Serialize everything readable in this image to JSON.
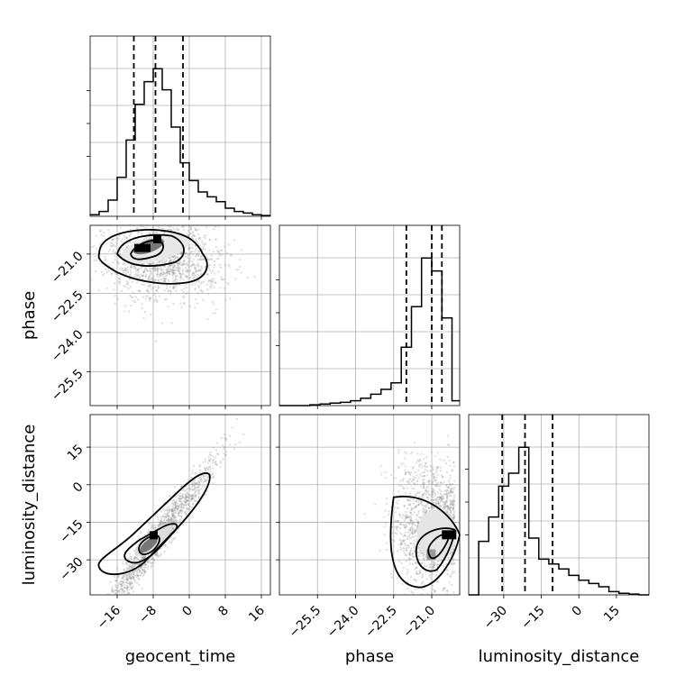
{
  "chart_data": [
    {
      "type": "histogram",
      "panel": "geocent_time",
      "xlim": [
        -22,
        18
      ],
      "ylim": [
        0,
        1
      ],
      "xticks": [
        -16,
        -8,
        0,
        8,
        16
      ],
      "xticklabels": [
        "−16",
        "−8",
        "0",
        "8",
        "16"
      ],
      "xlabel": "geocent_time",
      "bin_edges": [
        -22,
        -20,
        -18,
        -16,
        -14,
        -12,
        -10,
        -8,
        -6,
        -4,
        -2,
        0,
        2,
        4,
        6,
        8,
        10,
        12,
        14,
        16,
        18
      ],
      "values": [
        0.01,
        0.03,
        0.1,
        0.24,
        0.47,
        0.69,
        0.83,
        0.91,
        0.78,
        0.55,
        0.33,
        0.22,
        0.15,
        0.12,
        0.09,
        0.05,
        0.03,
        0.02,
        0.01,
        0.005
      ],
      "quantiles": [
        -12.3,
        -7.5,
        -1.4
      ]
    },
    {
      "type": "scatter",
      "panel": "geocent_time vs phase",
      "xlim": [
        -22,
        18
      ],
      "ylim": [
        -26.8,
        -19.9
      ],
      "xticks": [
        -16,
        -8,
        0,
        8,
        16
      ],
      "yticks": [
        -21.0,
        -22.5,
        -24.0,
        -25.5
      ],
      "yticklabels": [
        "−21.0",
        "−22.5",
        "−24.0",
        "−25.5"
      ],
      "ylabel": "phase",
      "peak": [
        -8,
        -20.6
      ],
      "density": "high"
    },
    {
      "type": "histogram",
      "panel": "phase",
      "xlim": [
        -27,
        -19.9
      ],
      "ylim": [
        0,
        1
      ],
      "xticks": [
        -25.5,
        -24.0,
        -22.5,
        -21.0
      ],
      "bin_edges": [
        -27,
        -26.6,
        -26.2,
        -25.8,
        -25.4,
        -25.0,
        -24.6,
        -24.2,
        -23.8,
        -23.4,
        -23.0,
        -22.6,
        -22.2,
        -21.8,
        -21.4,
        -21.0,
        -20.6,
        -20.2,
        -19.9
      ],
      "values": [
        0.0,
        0.0,
        0.0,
        0.005,
        0.01,
        0.015,
        0.02,
        0.03,
        0.045,
        0.07,
        0.1,
        0.14,
        0.36,
        0.61,
        0.91,
        0.83,
        0.54,
        0.03
      ],
      "quantiles": [
        -22.0,
        -21.0,
        -20.6
      ]
    },
    {
      "type": "scatter",
      "panel": "geocent_time vs luminosity_distance",
      "xlim": [
        -22,
        18
      ],
      "ylim": [
        -44,
        28
      ],
      "xticks": [
        -16,
        -8,
        0,
        8,
        16
      ],
      "yticks": [
        15,
        0,
        -15,
        -30
      ],
      "yticklabels": [
        "15",
        "0",
        "−15",
        "−30"
      ],
      "ylabel": "luminosity_distance",
      "xlabel": "geocent_time",
      "peak": [
        -8,
        -20
      ],
      "correlation": "positive"
    },
    {
      "type": "scatter",
      "panel": "phase vs luminosity_distance",
      "xlim": [
        -27,
        -19.9
      ],
      "ylim": [
        -44,
        28
      ],
      "xticks": [
        -25.5,
        -24.0,
        -22.5,
        -21.0
      ],
      "xticklabels": [
        "−25.5",
        "−24.0",
        "−22.5",
        "−21.0"
      ],
      "xlabel": "phase",
      "peak": [
        -20.5,
        -20
      ]
    },
    {
      "type": "histogram",
      "panel": "luminosity_distance",
      "xlim": [
        -44,
        28
      ],
      "ylim": [
        0,
        1
      ],
      "xticks": [
        -30,
        -15,
        0,
        15
      ],
      "xticklabels": [
        "−30",
        "−15",
        "0",
        "15"
      ],
      "xlabel": "luminosity_distance",
      "bin_edges": [
        -44,
        -40,
        -36,
        -32,
        -28,
        -24,
        -20,
        -16,
        -12,
        -8,
        -4,
        0,
        4,
        8,
        12,
        16,
        20,
        24,
        28
      ],
      "values": [
        0.0,
        0.33,
        0.48,
        0.67,
        0.75,
        0.91,
        0.35,
        0.22,
        0.19,
        0.16,
        0.12,
        0.09,
        0.07,
        0.05,
        0.02,
        0.01,
        0.005,
        0.0
      ],
      "quantiles": [
        -30.6,
        -21.5,
        -10.5
      ]
    }
  ]
}
